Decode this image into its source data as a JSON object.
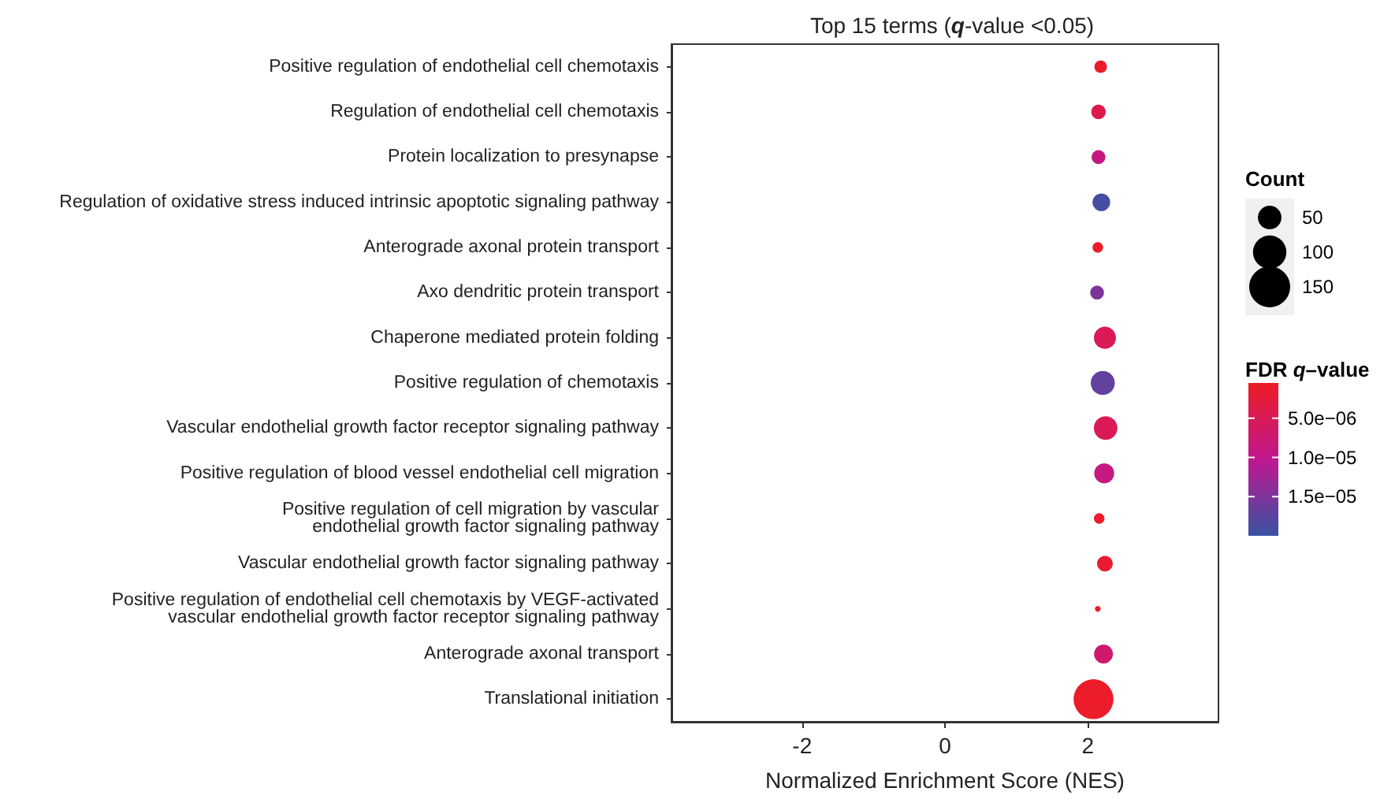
{
  "chart_data": {
    "type": "bubble",
    "title": "Top 15 terms (q-value <0.05)",
    "xlabel": "Normalized Enrichment Score (NES)",
    "legend_title": "Count",
    "clabel": "FDR q–value",
    "categories": [
      "Positive regulation of endothelial cell chemotaxis",
      "Regulation of endothelial cell chemotaxis",
      "Protein localization to presynapse",
      "Regulation of oxidative stress induced intrinsic apoptotic signaling pathway",
      "Anterograde axonal protein transport",
      "Axo dendritic protein transport",
      "Chaperone mediated protein folding",
      "Positive regulation of chemotaxis",
      "Vascular endothelial growth factor receptor signaling pathway",
      "Positive regulation of blood vessel endothelial cell migration",
      "Positive regulation of cell migration by vascular\nendothelial growth factor signaling pathway",
      "Vascular endothelial growth factor signaling pathway",
      "Positive regulation of endothelial cell chemotaxis by VEGF-activated\nvascular endothelial growth factor receptor signaling pathway",
      "Anterograde axonal transport",
      "Translational initiation"
    ],
    "orientation": "horizontal",
    "values": [
      2.18,
      2.15,
      2.15,
      2.19,
      2.14,
      2.13,
      2.24,
      2.21,
      2.25,
      2.23,
      2.16,
      2.24,
      2.14,
      2.22,
      2.08
    ],
    "sizes": [
      14,
      19,
      17,
      28,
      10,
      17,
      44,
      52,
      50,
      36,
      10,
      22,
      3,
      32,
      142
    ],
    "cvalues": [
      1e-06,
      4e-06,
      9e-06,
      1.9e-05,
      1e-06,
      1.5e-05,
      5e-06,
      1.7e-05,
      5e-06,
      9e-06,
      1e-06,
      1.5e-06,
      1e-06,
      7e-06,
      1e-06
    ],
    "size_legend": [
      50,
      100,
      150
    ],
    "clim": [
      5e-07,
      2e-05
    ],
    "cticks": [
      {
        "value": 5e-06,
        "label": "5.0e−06"
      },
      {
        "value": 1e-05,
        "label": "1.0e−05"
      },
      {
        "value": 1.5e-05,
        "label": "1.5e−05"
      }
    ],
    "xlim": [
      -3.83,
      3.83
    ],
    "xticks": [
      -2,
      0,
      2
    ],
    "grid": false
  }
}
